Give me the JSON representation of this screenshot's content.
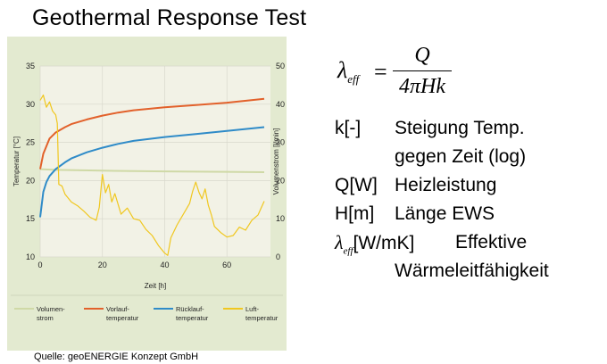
{
  "slide": {
    "title": "Geothermal Response Test",
    "source": "Quelle: geoENERGIE Konzept GmbH"
  },
  "formula": {
    "lhs_symbol": "λ",
    "lhs_sub": "eff",
    "equals": "=",
    "numerator": "Q",
    "denominator": "4πHk"
  },
  "definitions": [
    {
      "key": "k[-]",
      "value": "Steigung Temp.",
      "value_line2": "gegen Zeit (log)"
    },
    {
      "key": "Q[W]",
      "value": "Heizleistung"
    },
    {
      "key": "H[m]",
      "value": "Länge EWS"
    },
    {
      "key_symbol": "λ",
      "key_sub": "eff",
      "key_rest": "[W/mK]",
      "value": "Effektive",
      "value_line2": "Wärmeleitfähigkeit"
    }
  ],
  "colors": {
    "plot_bg": "#f2f2e6",
    "panel_bg": "#e3ead0",
    "volumenstrom": "#cfd9a6",
    "vorlauf": "#e2612b",
    "ruecklauf": "#2f8bc8",
    "luft": "#f0c71f"
  },
  "chart_data": {
    "type": "line",
    "xlabel": "Zeit [h]",
    "ylabel_left": "Temperatur [°C]",
    "ylabel_right": "Volumenstrom [l/min]",
    "xlim": [
      0,
      74
    ],
    "xticks": [
      0,
      20,
      40,
      60
    ],
    "ylim_left": [
      10,
      35
    ],
    "yticks_left": [
      10,
      15,
      20,
      25,
      30,
      35
    ],
    "ylim_right": [
      0,
      50
    ],
    "yticks_right": [
      0,
      10,
      20,
      30,
      40,
      50
    ],
    "grid": true,
    "legend_position": "bottom",
    "series": [
      {
        "name": "Volumen-strom",
        "legend": [
          "Volumen-",
          "strom"
        ],
        "axis": "right",
        "color_key": "volumenstrom",
        "x": [
          0,
          5,
          20,
          40,
          60,
          72
        ],
        "y": [
          23,
          22.8,
          22.6,
          22.4,
          22.3,
          22.2
        ]
      },
      {
        "name": "Vorlauf-temperatur",
        "legend": [
          "Vorlauf-",
          "temperatur"
        ],
        "axis": "left",
        "color_key": "vorlauf",
        "x": [
          0,
          1,
          2,
          3,
          5,
          8,
          10,
          15,
          20,
          25,
          30,
          40,
          50,
          60,
          72
        ],
        "y": [
          21.5,
          23.5,
          24.5,
          25.5,
          26.3,
          27.0,
          27.4,
          28.0,
          28.5,
          28.9,
          29.2,
          29.6,
          29.9,
          30.2,
          30.7
        ]
      },
      {
        "name": "Rücklauf-temperatur",
        "legend": [
          "Rücklauf-",
          "temperatur"
        ],
        "axis": "left",
        "color_key": "ruecklauf",
        "x": [
          0,
          1,
          2,
          3,
          5,
          8,
          10,
          15,
          20,
          25,
          30,
          40,
          50,
          60,
          72
        ],
        "y": [
          15.2,
          18.5,
          19.8,
          20.6,
          21.5,
          22.4,
          22.9,
          23.7,
          24.3,
          24.8,
          25.2,
          25.7,
          26.1,
          26.5,
          27.0
        ]
      },
      {
        "name": "Luft-temperatur",
        "legend": [
          "Luft-",
          "temperatur"
        ],
        "axis": "left",
        "color_key": "luft",
        "x": [
          0,
          1,
          2,
          3,
          4,
          5,
          5.5,
          6,
          7,
          8,
          10,
          12,
          14,
          16,
          18,
          19,
          20,
          21,
          22,
          23,
          24,
          26,
          28,
          30,
          32,
          34,
          36,
          38,
          40,
          41,
          42,
          44,
          46,
          48,
          49,
          50,
          51,
          52,
          53,
          54,
          55,
          56,
          58,
          60,
          62,
          64,
          66,
          68,
          70,
          71,
          72
        ],
        "y": [
          30.5,
          31.2,
          29.6,
          30.3,
          29.1,
          28.6,
          27.5,
          19.5,
          19.3,
          18.2,
          17.2,
          16.7,
          16.0,
          15.2,
          14.8,
          16.5,
          20.8,
          18.4,
          19.5,
          17.2,
          18.3,
          15.6,
          16.4,
          15.0,
          14.8,
          13.6,
          12.8,
          11.5,
          10.5,
          10.2,
          12.5,
          14.2,
          15.6,
          17.0,
          18.6,
          19.8,
          18.5,
          17.6,
          18.9,
          16.8,
          15.5,
          14.0,
          13.2,
          12.6,
          12.8,
          13.9,
          13.5,
          14.8,
          15.5,
          16.4,
          17.3
        ]
      }
    ]
  }
}
